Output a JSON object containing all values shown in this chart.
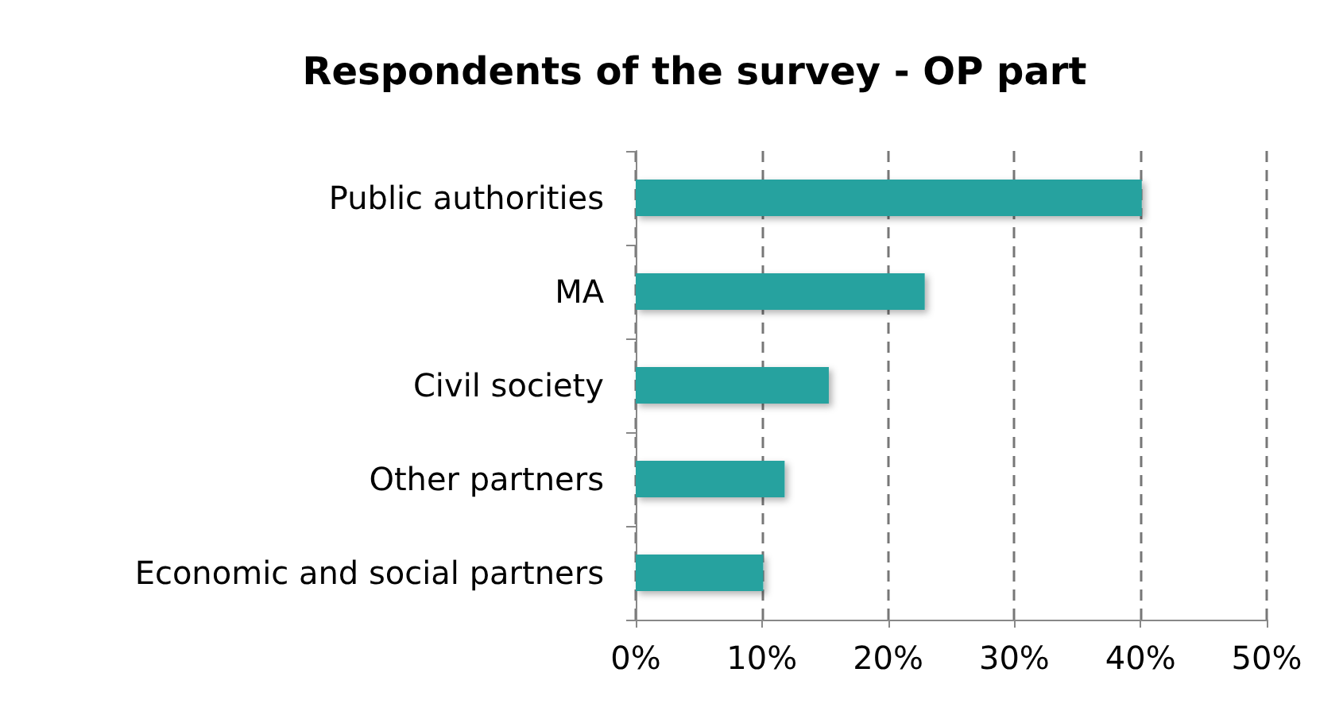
{
  "chart_data": {
    "type": "bar",
    "orientation": "horizontal",
    "title": "Respondents of the survey - OP part",
    "categories": [
      "Public authorities",
      "MA",
      "Civil society",
      "Other partners",
      "Economic and social partners"
    ],
    "values": [
      40.1,
      22.9,
      15.3,
      11.8,
      10.1
    ],
    "color": "#26a29f",
    "xlim": [
      0,
      50
    ],
    "xticks": [
      {
        "value": 0,
        "label": "0%"
      },
      {
        "value": 10,
        "label": "10%"
      },
      {
        "value": 20,
        "label": "20%"
      },
      {
        "value": 30,
        "label": "30%"
      },
      {
        "value": 40,
        "label": "40%"
      },
      {
        "value": 50,
        "label": "50%"
      }
    ],
    "grid": "x"
  }
}
